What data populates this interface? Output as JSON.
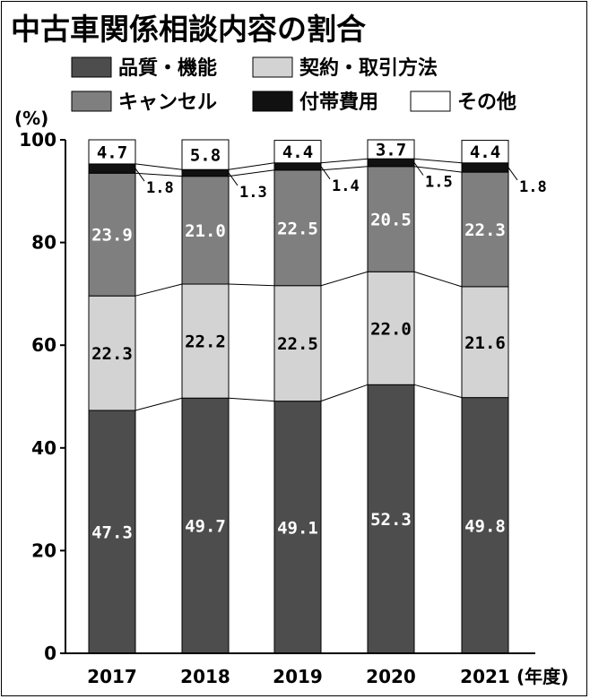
{
  "chart_data": {
    "type": "bar",
    "stacked": true,
    "title": "中古車関係相談内容の割合",
    "ylabel": "(%)",
    "xlabel": "(年度)",
    "ylim": [
      0,
      100
    ],
    "yticks": [
      0,
      20,
      40,
      60,
      80,
      100
    ],
    "categories": [
      "2017",
      "2018",
      "2019",
      "2020",
      "2021"
    ],
    "series": [
      {
        "name": "品質・機能",
        "color": "#4d4d4d",
        "label_color": "#ffffff",
        "values": [
          47.3,
          49.7,
          49.1,
          52.3,
          49.8
        ]
      },
      {
        "name": "契約・取引方法",
        "color": "#d3d3d3",
        "label_color": "#000000",
        "values": [
          22.3,
          22.2,
          22.5,
          22.0,
          21.6
        ]
      },
      {
        "name": "キャンセル",
        "color": "#7f7f7f",
        "label_color": "#ffffff",
        "values": [
          23.9,
          21.0,
          22.5,
          20.5,
          22.3
        ]
      },
      {
        "name": "付帯費用",
        "color": "#111111",
        "label_color": "#ffffff",
        "values": [
          1.8,
          1.3,
          1.4,
          1.5,
          1.8
        ]
      },
      {
        "name": "その他",
        "color": "#ffffff",
        "label_color": "#000000",
        "values": [
          4.7,
          5.8,
          4.4,
          3.7,
          4.4
        ]
      }
    ],
    "legend_position": "top",
    "grid": false
  }
}
